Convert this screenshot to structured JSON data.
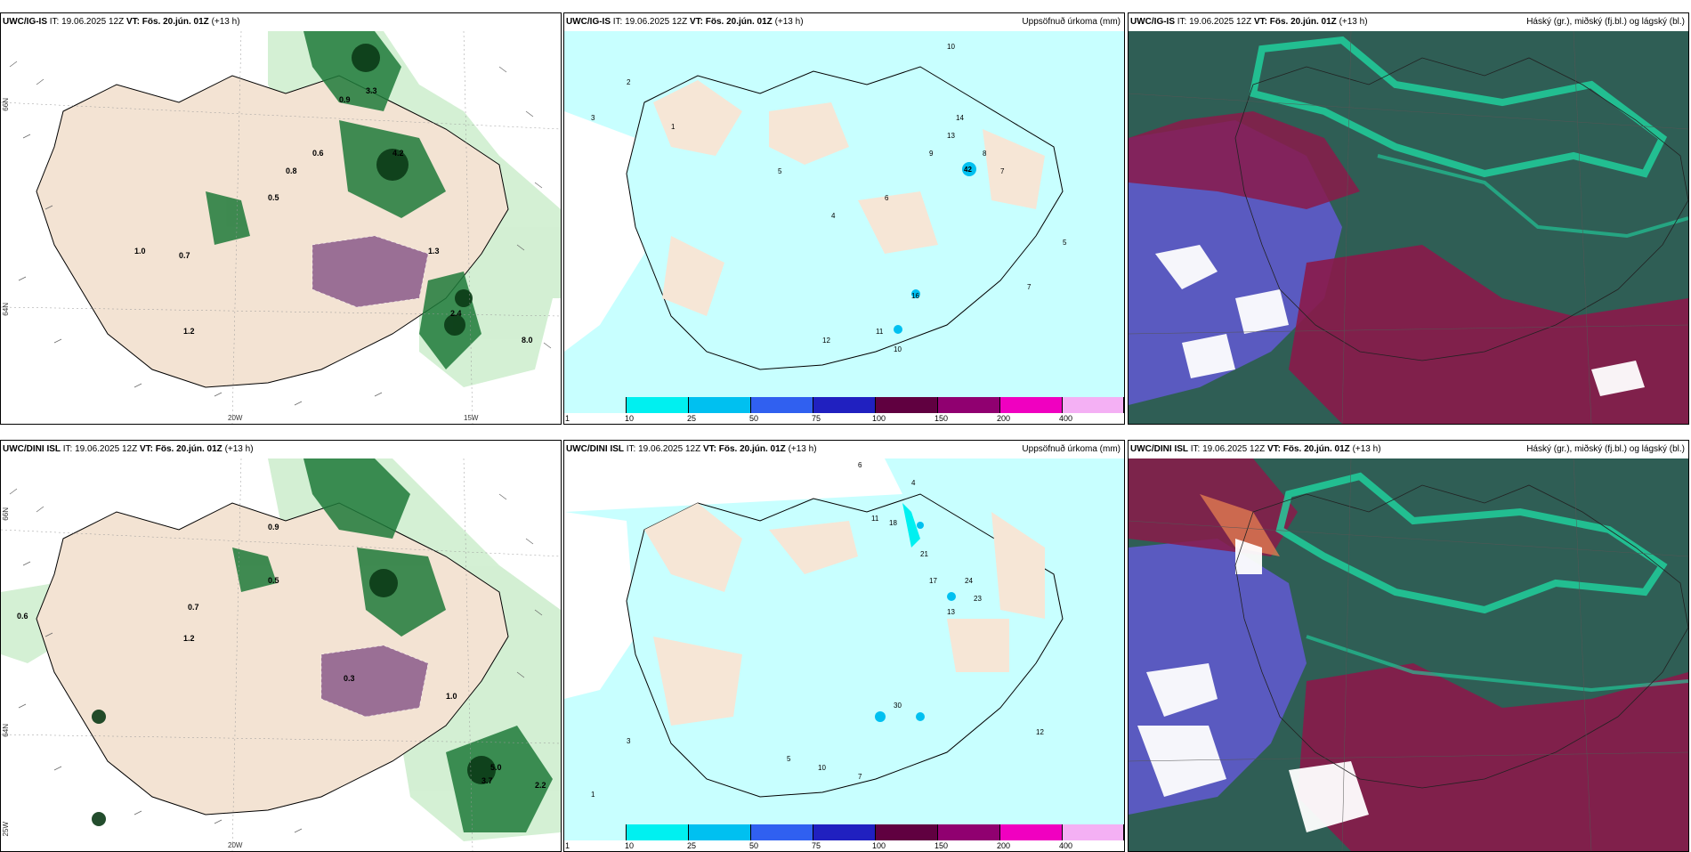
{
  "panels": [
    {
      "model": "UWC/IG-IS",
      "it": "IT: 19.06.2025 12Z",
      "vt_label": "VT:",
      "vt": "Fös. 20.jún. 01Z",
      "lead": "(+13 h)",
      "right_title": ""
    },
    {
      "model": "UWC/IG-IS",
      "it": "IT: 19.06.2025 12Z",
      "vt_label": "VT:",
      "vt": "Fös. 20.jún. 01Z",
      "lead": "(+13 h)",
      "right_title": "Uppsöfnuð úrkoma (mm)"
    },
    {
      "model": "UWC/IG-IS",
      "it": "IT: 19.06.2025 12Z",
      "vt_label": "VT:",
      "vt": "Fös. 20.jún. 01Z",
      "lead": "(+13 h)",
      "right_title": "Háský (gr.), miðský (fj.bl.) og lágský (bl.)"
    },
    {
      "model": "UWC/DINI ISL",
      "it": "IT: 19.06.2025 12Z",
      "vt_label": "VT:",
      "vt": "Fös. 20.jún. 01Z",
      "lead": "(+13 h)",
      "right_title": ""
    },
    {
      "model": "UWC/DINI ISL",
      "it": "IT: 19.06.2025 12Z",
      "vt_label": "VT:",
      "vt": "Fös. 20.jún. 01Z",
      "lead": "(+13 h)",
      "right_title": "Uppsöfnuð úrkoma (mm)"
    },
    {
      "model": "UWC/DINI ISL",
      "it": "IT: 19.06.2025 12Z",
      "vt_label": "VT:",
      "vt": "Fös. 20.jún. 01Z",
      "lead": "(+13 h)",
      "right_title": "Háský (gr.), miðský (fj.bl.) og lágský (bl.)"
    }
  ],
  "axis_labels": {
    "lat66": "66N",
    "lat64": "64N",
    "lon20": "20W",
    "lon15": "15W",
    "lon25": "25W"
  },
  "colorbar": {
    "levels": [
      "1",
      "10",
      "25",
      "50",
      "75",
      "100",
      "150",
      "200",
      "400"
    ],
    "colors": [
      "#c8ffff",
      "#00f0f0",
      "#00c0f0",
      "#3060f0",
      "#2020c0",
      "#600040",
      "#900070",
      "#f000c0",
      "#f4b0f4"
    ]
  },
  "precip_values_top": [
    "2",
    "1",
    "3",
    "5",
    "10",
    "14",
    "13",
    "9",
    "8",
    "42",
    "7",
    "6",
    "4",
    "16",
    "11",
    "12",
    "10",
    "7",
    "5"
  ],
  "precip_values_bottom": [
    "6",
    "4",
    "11",
    "18",
    "21",
    "17",
    "24",
    "23",
    "13",
    "30",
    "12",
    "10",
    "7",
    "5",
    "3",
    "1"
  ],
  "rain_labels_top": [
    "0.9",
    "0.6",
    "0.8",
    "1.0",
    "3.3",
    "0.5",
    "0.7",
    "1.2",
    "2.4",
    "4.2",
    "1.3",
    "8.0"
  ],
  "rain_labels_bottom": [
    "0.6",
    "0.9",
    "0.5",
    "1.2",
    "0.3",
    "0.7",
    "5.0",
    "2.2",
    "3.7",
    "1.0"
  ]
}
